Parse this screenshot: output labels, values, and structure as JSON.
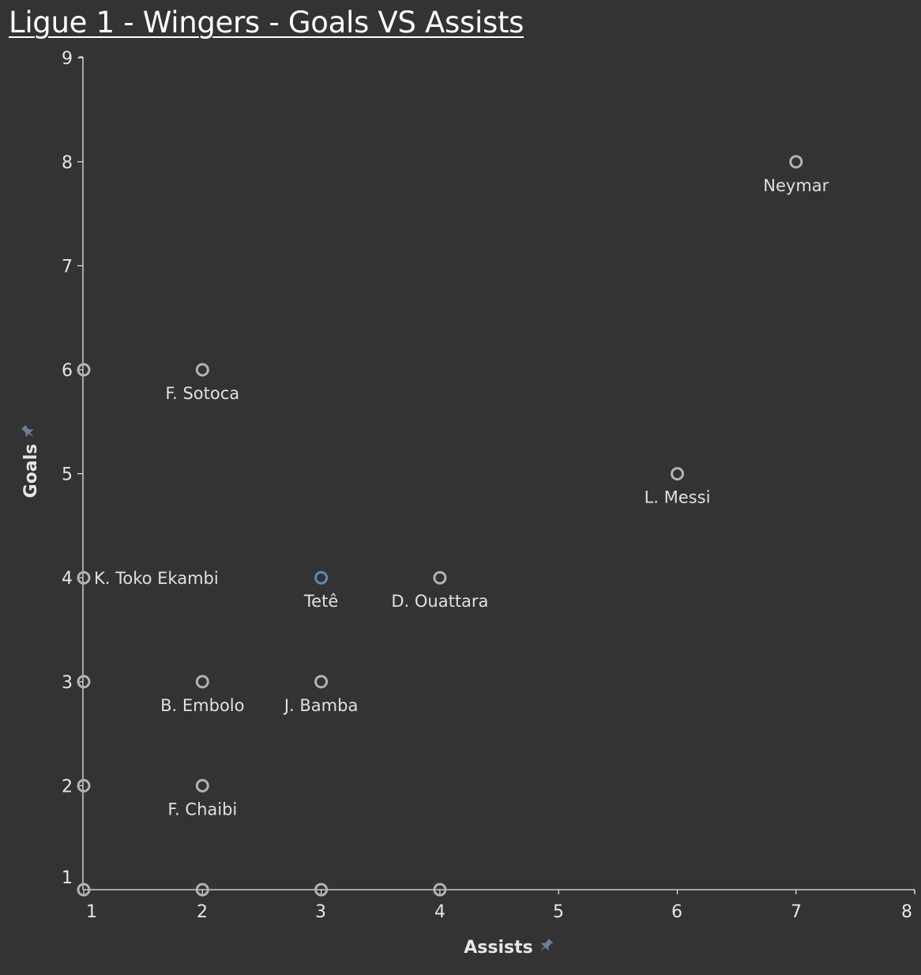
{
  "title": "Ligue 1 - Wingers - Goals VS Assists",
  "chart_data": {
    "type": "scatter",
    "title": "Ligue 1 - Wingers - Goals VS Assists",
    "xlabel": "Assists",
    "ylabel": "Goals",
    "xlim": [
      1,
      8
    ],
    "ylim": [
      1,
      9
    ],
    "xticks": [
      1,
      2,
      3,
      4,
      5,
      6,
      7,
      8
    ],
    "yticks": [
      1,
      2,
      3,
      4,
      5,
      6,
      7,
      8,
      9
    ],
    "grid": false,
    "colors": {
      "point": "#b3b3b3",
      "highlight": "#5b8bbd",
      "axis": "#e6e6e6",
      "pin": "#6b7f99"
    },
    "points": [
      {
        "x": 7,
        "y": 8,
        "label": "Neymar"
      },
      {
        "x": 6,
        "y": 5,
        "label": "L. Messi"
      },
      {
        "x": 2,
        "y": 6,
        "label": "F. Sotoca"
      },
      {
        "x": 1,
        "y": 6,
        "label": ""
      },
      {
        "x": 1,
        "y": 4,
        "label": "K. Toko Ekambi"
      },
      {
        "x": 3,
        "y": 4,
        "label": "Tetê",
        "highlight": true
      },
      {
        "x": 4,
        "y": 4,
        "label": "D. Ouattara"
      },
      {
        "x": 1,
        "y": 3,
        "label": ""
      },
      {
        "x": 2,
        "y": 3,
        "label": "B. Embolo"
      },
      {
        "x": 3,
        "y": 3,
        "label": "J. Bamba"
      },
      {
        "x": 1,
        "y": 2,
        "label": ""
      },
      {
        "x": 2,
        "y": 2,
        "label": "F. Chaibi"
      },
      {
        "x": 1,
        "y": 1,
        "label": ""
      },
      {
        "x": 2,
        "y": 1,
        "label": ""
      },
      {
        "x": 3,
        "y": 1,
        "label": ""
      },
      {
        "x": 4,
        "y": 1,
        "label": ""
      }
    ]
  }
}
